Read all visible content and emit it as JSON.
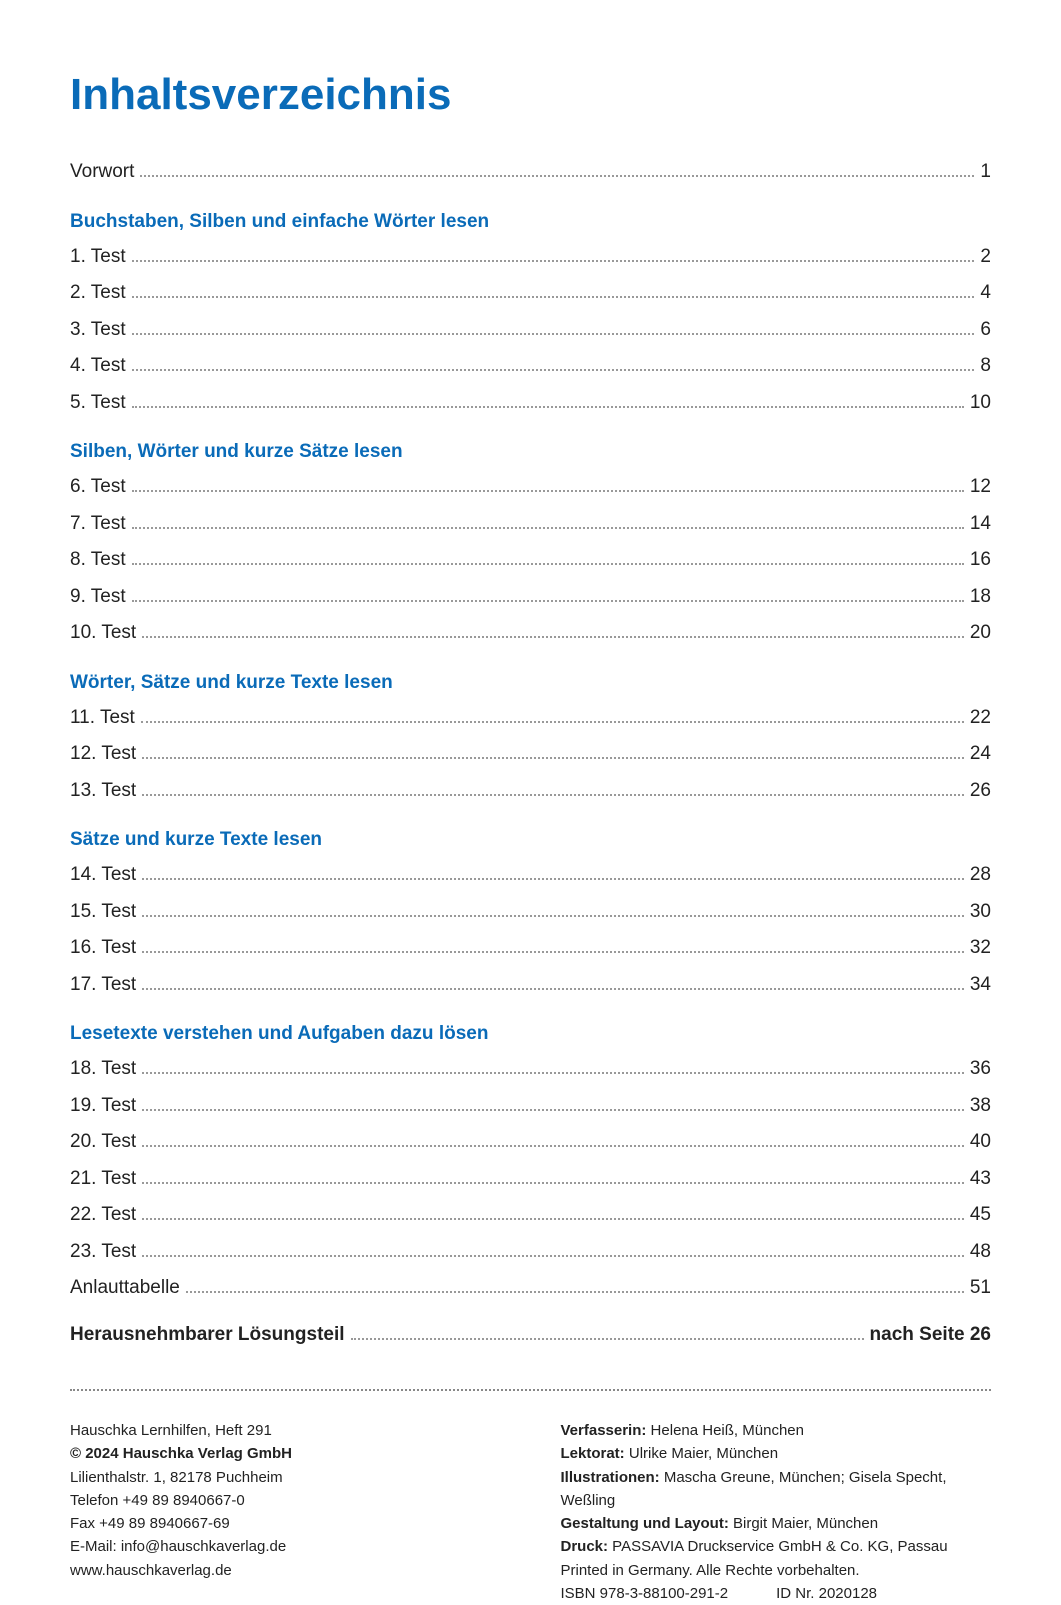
{
  "colors": {
    "blue": "#0a6bb8",
    "text": "#222222",
    "dots": "#999999"
  },
  "title": "Inhaltsverzeichnis",
  "toc": [
    {
      "type": "row",
      "label": "Vorwort",
      "page": "1"
    },
    {
      "type": "section",
      "label": "Buchstaben, Silben und einfache Wörter lesen"
    },
    {
      "type": "row",
      "label": "1. Test",
      "page": "2"
    },
    {
      "type": "row",
      "label": "2. Test",
      "page": "4"
    },
    {
      "type": "row",
      "label": "3. Test",
      "page": "6"
    },
    {
      "type": "row",
      "label": "4. Test",
      "page": "8"
    },
    {
      "type": "row",
      "label": "5. Test",
      "page": "10"
    },
    {
      "type": "section",
      "label": "Silben, Wörter und kurze Sätze lesen"
    },
    {
      "type": "row",
      "label": "6. Test",
      "page": "12"
    },
    {
      "type": "row",
      "label": "7. Test",
      "page": "14"
    },
    {
      "type": "row",
      "label": "8. Test",
      "page": "16"
    },
    {
      "type": "row",
      "label": "9. Test",
      "page": "18"
    },
    {
      "type": "row",
      "label": "10. Test",
      "page": "20"
    },
    {
      "type": "section",
      "label": "Wörter, Sätze und kurze Texte lesen"
    },
    {
      "type": "row",
      "label": "11. Test",
      "page": "22"
    },
    {
      "type": "row",
      "label": "12. Test",
      "page": "24"
    },
    {
      "type": "row",
      "label": "13. Test",
      "page": "26"
    },
    {
      "type": "section",
      "label": "Sätze und kurze Texte lesen"
    },
    {
      "type": "row",
      "label": "14. Test",
      "page": "28"
    },
    {
      "type": "row",
      "label": "15. Test",
      "page": "30"
    },
    {
      "type": "row",
      "label": "16. Test",
      "page": "32"
    },
    {
      "type": "row",
      "label": "17. Test",
      "page": "34"
    },
    {
      "type": "section",
      "label": "Lesetexte verstehen und Aufgaben dazu lösen"
    },
    {
      "type": "row",
      "label": "18. Test",
      "page": "36"
    },
    {
      "type": "row",
      "label": "19. Test",
      "page": "38"
    },
    {
      "type": "row",
      "label": "20. Test",
      "page": "40"
    },
    {
      "type": "row",
      "label": "21. Test",
      "page": "43"
    },
    {
      "type": "row",
      "label": "22. Test",
      "page": "45"
    },
    {
      "type": "row",
      "label": "23. Test",
      "page": "48"
    },
    {
      "type": "row",
      "label": "Anlauttabelle",
      "page": "51"
    },
    {
      "type": "boldrow",
      "label": "Herausnehmbarer Lösungsteil",
      "page": "nach Seite 26"
    }
  ],
  "footer": {
    "left": {
      "l1": "Hauschka Lernhilfen, Heft 291",
      "l2": "© 2024 Hauschka Verlag GmbH",
      "l3": "Lilienthalstr. 1, 82178 Puchheim",
      "l4": "Telefon +49 89 8940667-0",
      "l5": "Fax +49 89 8940667-69",
      "l6": "E-Mail: info@hauschkaverlag.de",
      "l7": "www.hauschkaverlag.de"
    },
    "right": {
      "k1": "Verfasserin:",
      "v1": " Helena Heiß, München",
      "k2": "Lektorat:",
      "v2": " Ulrike Maier, München",
      "k3": "Illustrationen:",
      "v3": " Mascha Greune, München; Gisela Specht, Weßling",
      "k4": "Gestaltung und Layout:",
      "v4": " Birgit Maier, München",
      "k5": "Druck:",
      "v5": " PASSAVIA Druckservice GmbH & Co. KG, Passau",
      "l6": "Printed in Germany. Alle Rechte vorbehalten.",
      "isbn": "ISBN 978-3-88100-291-2",
      "idnr": "ID Nr. 2020128"
    }
  }
}
